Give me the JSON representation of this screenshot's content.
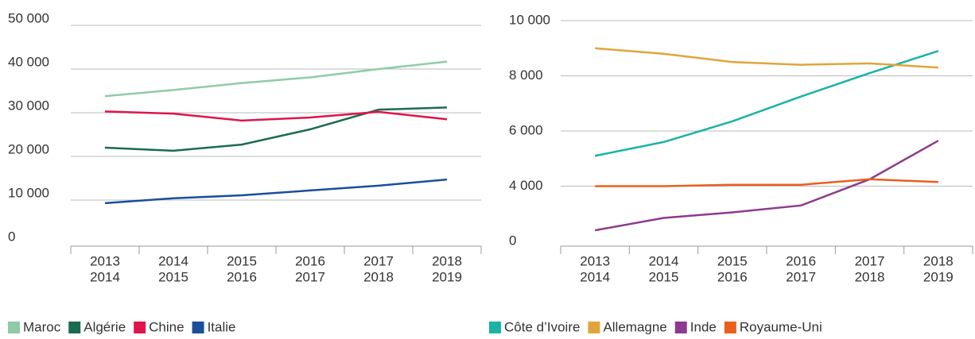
{
  "chart_data": [
    {
      "type": "line",
      "categories": [
        [
          "2013",
          "2014"
        ],
        [
          "2014",
          "2015"
        ],
        [
          "2015",
          "2016"
        ],
        [
          "2016",
          "2017"
        ],
        [
          "2017",
          "2018"
        ],
        [
          "2018",
          "2019"
        ]
      ],
      "ylim": [
        0,
        50000
      ],
      "yticks": [
        0,
        {
          "value": 10000,
          "label": "10 000"
        },
        {
          "value": 20000,
          "label": "20 000"
        },
        {
          "value": 30000,
          "label": "30 000"
        },
        {
          "value": 40000,
          "label": "40 000"
        },
        {
          "value": 50000,
          "label": "50 000"
        }
      ],
      "grid": true,
      "series": [
        {
          "name": "Maroc",
          "color": "#8fcca6",
          "values": [
            33800,
            35200,
            36800,
            38100,
            40000,
            41700
          ]
        },
        {
          "name": "Algérie",
          "color": "#1b6b50",
          "values": [
            22000,
            21300,
            22700,
            26200,
            30700,
            31200
          ]
        },
        {
          "name": "Chine",
          "color": "#e0144c",
          "values": [
            30300,
            29800,
            28200,
            28900,
            30200,
            28500
          ]
        },
        {
          "name": "Italie",
          "color": "#1a4f9c",
          "values": [
            9300,
            10400,
            11100,
            12200,
            13300,
            14700
          ]
        }
      ]
    },
    {
      "type": "line",
      "categories": [
        [
          "2013",
          "2014"
        ],
        [
          "2014",
          "2015"
        ],
        [
          "2015",
          "2016"
        ],
        [
          "2016",
          "2017"
        ],
        [
          "2017",
          "2018"
        ],
        [
          "2018",
          "2019"
        ]
      ],
      "ylim": [
        0,
        10000
      ],
      "yticks": [
        0,
        {
          "value": 4000,
          "label": "4 000"
        },
        {
          "value": 6000,
          "label": "6 000"
        },
        {
          "value": 8000,
          "label": "8 000"
        },
        {
          "value": 10000,
          "label": "10 000"
        }
      ],
      "grid": true,
      "series": [
        {
          "name": "Côte d’Ivoire",
          "color": "#1ab3a6",
          "values": [
            5100,
            5600,
            6350,
            7250,
            8100,
            8900
          ]
        },
        {
          "name": "Allemagne",
          "color": "#e0a53a",
          "values": [
            9000,
            8800,
            8500,
            8400,
            8450,
            8300
          ]
        },
        {
          "name": "Inde",
          "color": "#8e3a8e",
          "values": [
            800,
            1700,
            2100,
            2600,
            4250,
            5650
          ]
        },
        {
          "name": "Royaume-Uni",
          "color": "#e8601c",
          "values": [
            4000,
            4000,
            4050,
            4050,
            4250,
            4150
          ]
        }
      ]
    }
  ]
}
